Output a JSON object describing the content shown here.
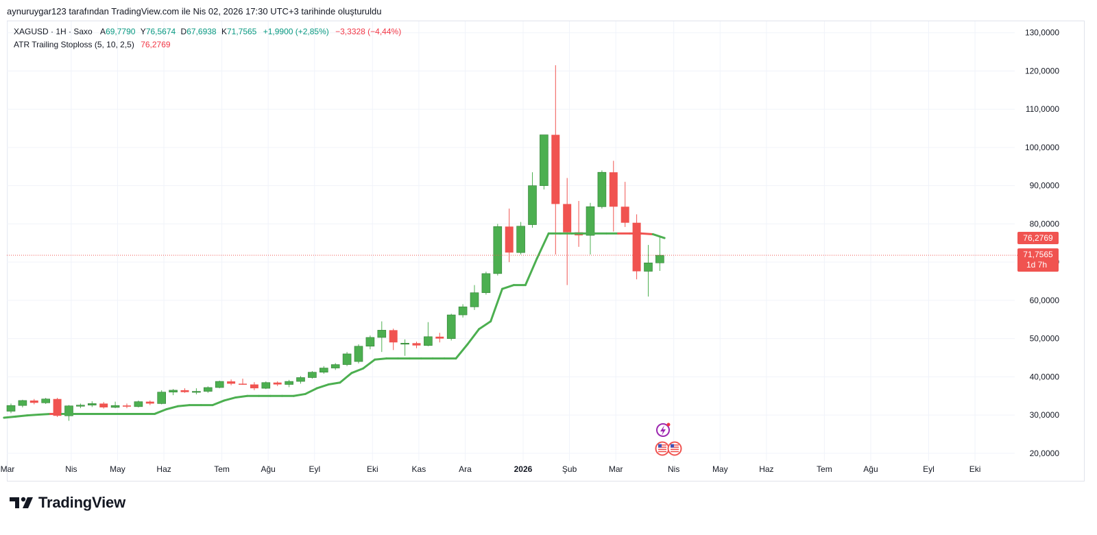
{
  "caption": "aynuruygar123 tarafından TradingView.com ile Nis 02, 2026 17:30 UTC+3 tarihinde oluşturuldu",
  "legend": {
    "symbol": "XAGUSD · 1H · Saxo",
    "open_label": "A",
    "open": "69,7790",
    "high_label": "Y",
    "high": "76,5674",
    "low_label": "D",
    "low": "67,6938",
    "close_label": "K",
    "close": "71,7565",
    "change": "+1,9900 (+2,85%)",
    "change2": "−3,3328 (−4,44%)",
    "indicator_name": "ATR Trailing Stoploss (5, 10, 2,5)",
    "indicator_value": "76,2769"
  },
  "price_tags": {
    "stop": "76,2769",
    "last": "71,7565",
    "countdown": "1d 7h"
  },
  "brand": "TradingView",
  "colors": {
    "up": "#4caf50",
    "down": "#f05350",
    "stop_up": "#4caf50",
    "stop_down": "#f05350",
    "grid": "#f0f3fa"
  },
  "chart_data": {
    "type": "candlestick",
    "title": "XAGUSD · 1H · Saxo",
    "ylim": [
      18,
      133
    ],
    "y_ticks": [
      20,
      30,
      40,
      50,
      60,
      70,
      80,
      90,
      100,
      110,
      120,
      130
    ],
    "y_tick_labels": [
      "20,0000",
      "30,0000",
      "40,0000",
      "50,0000",
      "60,0000",
      "70,0000",
      "80,0000",
      "90,0000",
      "100,0000",
      "110,0000",
      "120,0000",
      "130,0000"
    ],
    "x_labels": [
      {
        "label": "Mar",
        "i": -0.3
      },
      {
        "label": "Nis",
        "i": 5.2
      },
      {
        "label": "May",
        "i": 9.2
      },
      {
        "label": "Haz",
        "i": 13.2
      },
      {
        "label": "Tem",
        "i": 18.2
      },
      {
        "label": "Ağu",
        "i": 22.2
      },
      {
        "label": "Eyl",
        "i": 26.2
      },
      {
        "label": "Eki",
        "i": 31.2
      },
      {
        "label": "Kas",
        "i": 35.2
      },
      {
        "label": "Ara",
        "i": 39.2
      },
      {
        "label": "2026",
        "i": 44.2,
        "bold": true
      },
      {
        "label": "Şub",
        "i": 48.2
      },
      {
        "label": "Mar",
        "i": 52.2
      },
      {
        "label": "Nis",
        "i": 57.2
      },
      {
        "label": "May",
        "i": 61.2
      },
      {
        "label": "Haz",
        "i": 65.2
      },
      {
        "label": "Tem",
        "i": 70.2
      },
      {
        "label": "Ağu",
        "i": 74.2
      },
      {
        "label": "Eyl",
        "i": 79.2
      },
      {
        "label": "Eki",
        "i": 83.2
      }
    ],
    "candles": [
      {
        "o": 31.0,
        "h": 33.0,
        "l": 30.5,
        "c": 32.5
      },
      {
        "o": 32.5,
        "h": 34.0,
        "l": 32.0,
        "c": 33.8
      },
      {
        "o": 33.8,
        "h": 34.2,
        "l": 32.8,
        "c": 33.2
      },
      {
        "o": 33.2,
        "h": 34.5,
        "l": 32.9,
        "c": 34.2
      },
      {
        "o": 34.2,
        "h": 34.5,
        "l": 29.5,
        "c": 29.8
      },
      {
        "o": 29.8,
        "h": 32.6,
        "l": 28.5,
        "c": 32.4
      },
      {
        "o": 32.3,
        "h": 33.0,
        "l": 31.8,
        "c": 32.6
      },
      {
        "o": 32.6,
        "h": 33.6,
        "l": 32.1,
        "c": 33.0
      },
      {
        "o": 33.0,
        "h": 33.4,
        "l": 31.7,
        "c": 32.0
      },
      {
        "o": 32.0,
        "h": 33.5,
        "l": 31.8,
        "c": 32.5
      },
      {
        "o": 32.5,
        "h": 33.0,
        "l": 31.8,
        "c": 32.2
      },
      {
        "o": 32.2,
        "h": 33.8,
        "l": 32.0,
        "c": 33.5
      },
      {
        "o": 33.5,
        "h": 33.8,
        "l": 32.6,
        "c": 33.0
      },
      {
        "o": 33.0,
        "h": 36.5,
        "l": 32.8,
        "c": 36.0
      },
      {
        "o": 36.0,
        "h": 36.8,
        "l": 35.2,
        "c": 36.5
      },
      {
        "o": 36.5,
        "h": 37.0,
        "l": 35.8,
        "c": 36.0
      },
      {
        "o": 36.0,
        "h": 37.0,
        "l": 35.4,
        "c": 36.2
      },
      {
        "o": 36.2,
        "h": 37.5,
        "l": 35.8,
        "c": 37.2
      },
      {
        "o": 37.2,
        "h": 39.0,
        "l": 37.0,
        "c": 38.8
      },
      {
        "o": 38.8,
        "h": 39.3,
        "l": 37.8,
        "c": 38.2
      },
      {
        "o": 38.2,
        "h": 39.5,
        "l": 37.9,
        "c": 38.0
      },
      {
        "o": 38.0,
        "h": 38.6,
        "l": 36.5,
        "c": 37.0
      },
      {
        "o": 37.0,
        "h": 38.8,
        "l": 36.8,
        "c": 38.5
      },
      {
        "o": 38.5,
        "h": 38.8,
        "l": 37.6,
        "c": 38.0
      },
      {
        "o": 38.0,
        "h": 39.2,
        "l": 37.3,
        "c": 38.8
      },
      {
        "o": 38.8,
        "h": 40.2,
        "l": 38.2,
        "c": 39.8
      },
      {
        "o": 39.8,
        "h": 41.5,
        "l": 39.5,
        "c": 41.2
      },
      {
        "o": 41.2,
        "h": 42.8,
        "l": 40.8,
        "c": 42.3
      },
      {
        "o": 42.3,
        "h": 43.6,
        "l": 41.8,
        "c": 43.2
      },
      {
        "o": 43.2,
        "h": 46.5,
        "l": 42.8,
        "c": 46.0
      },
      {
        "o": 44.0,
        "h": 48.5,
        "l": 43.5,
        "c": 48.0
      },
      {
        "o": 48.0,
        "h": 50.8,
        "l": 47.2,
        "c": 50.3
      },
      {
        "o": 50.3,
        "h": 54.5,
        "l": 46.5,
        "c": 52.2
      },
      {
        "o": 52.2,
        "h": 52.6,
        "l": 47.0,
        "c": 49.0
      },
      {
        "o": 48.6,
        "h": 49.8,
        "l": 45.5,
        "c": 48.8
      },
      {
        "o": 48.8,
        "h": 49.2,
        "l": 47.5,
        "c": 48.2
      },
      {
        "o": 48.2,
        "h": 54.3,
        "l": 48.0,
        "c": 50.5
      },
      {
        "o": 50.5,
        "h": 51.5,
        "l": 49.0,
        "c": 50.0
      },
      {
        "o": 50.0,
        "h": 56.5,
        "l": 49.5,
        "c": 56.2
      },
      {
        "o": 56.2,
        "h": 59.0,
        "l": 55.5,
        "c": 58.3
      },
      {
        "o": 58.3,
        "h": 64.0,
        "l": 57.5,
        "c": 62.0
      },
      {
        "o": 62.0,
        "h": 67.5,
        "l": 61.5,
        "c": 67.0
      },
      {
        "o": 67.0,
        "h": 80.0,
        "l": 66.5,
        "c": 79.3
      },
      {
        "o": 79.3,
        "h": 84.0,
        "l": 70.0,
        "c": 72.5
      },
      {
        "o": 72.5,
        "h": 80.5,
        "l": 72.0,
        "c": 79.4
      },
      {
        "o": 79.8,
        "h": 93.5,
        "l": 79.0,
        "c": 90.0
      },
      {
        "o": 90.0,
        "h": 103.3,
        "l": 89.0,
        "c": 103.3
      },
      {
        "o": 103.3,
        "h": 121.5,
        "l": 72.0,
        "c": 85.2
      },
      {
        "o": 85.2,
        "h": 92.0,
        "l": 64.0,
        "c": 77.8
      },
      {
        "o": 77.8,
        "h": 86.0,
        "l": 74.0,
        "c": 77.0
      },
      {
        "o": 77.0,
        "h": 85.5,
        "l": 72.0,
        "c": 84.5
      },
      {
        "o": 84.5,
        "h": 94.0,
        "l": 84.0,
        "c": 93.5
      },
      {
        "o": 93.5,
        "h": 96.5,
        "l": 78.0,
        "c": 84.5
      },
      {
        "o": 84.5,
        "h": 91.0,
        "l": 79.2,
        "c": 80.3
      },
      {
        "o": 80.3,
        "h": 82.5,
        "l": 65.5,
        "c": 67.6
      },
      {
        "o": 67.6,
        "h": 74.5,
        "l": 61.0,
        "c": 69.8
      },
      {
        "o": 69.8,
        "h": 76.6,
        "l": 67.7,
        "c": 71.8
      }
    ],
    "atr_stop": {
      "name": "ATR Trailing Stoploss (5, 10, 2,5)",
      "offset": -0.6,
      "down_from": [
        4,
        5
      ],
      "down_segment_2": [
        53,
        56
      ],
      "values": [
        29.3,
        29.6,
        29.9,
        30.1,
        30.3,
        30.3,
        30.3,
        30.3,
        30.3,
        30.3,
        30.3,
        30.3,
        30.3,
        30.3,
        31.5,
        32.3,
        32.6,
        32.6,
        32.6,
        33.8,
        34.6,
        35.0,
        35.0,
        35.0,
        35.0,
        35.0,
        35.5,
        37.0,
        38.0,
        38.5,
        41.0,
        42.2,
        44.5,
        44.8,
        44.8,
        44.8,
        44.8,
        44.8,
        44.8,
        44.8,
        48.5,
        52.5,
        54.5,
        63.0,
        64.0,
        64.0,
        71.0,
        77.5,
        77.5,
        77.5,
        77.5,
        77.5,
        77.5,
        77.5,
        77.5,
        77.5,
        77.3,
        76.3
      ]
    }
  }
}
